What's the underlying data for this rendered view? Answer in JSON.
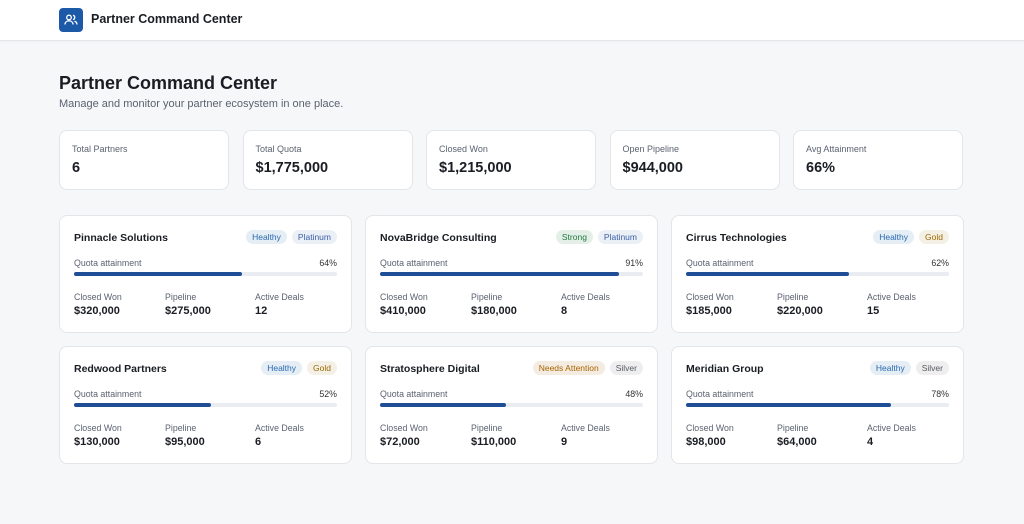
{
  "header": {
    "title": "Partner Command Center"
  },
  "page": {
    "title": "Partner Command Center",
    "subtitle": "Manage and monitor your partner ecosystem in one place."
  },
  "stats": [
    {
      "label": "Total Partners",
      "value": "6"
    },
    {
      "label": "Total Quota",
      "value": "$1,775,000"
    },
    {
      "label": "Closed Won",
      "value": "$1,215,000"
    },
    {
      "label": "Open Pipeline",
      "value": "$944,000"
    },
    {
      "label": "Avg Attainment",
      "value": "66%"
    }
  ],
  "card_labels": {
    "attainment": "Quota attainment",
    "closed_won": "Closed Won",
    "pipeline": "Pipeline",
    "active_deals": "Active Deals"
  },
  "bar_color": "#1f4e96",
  "partners": [
    {
      "name": "Pinnacle Solutions",
      "status": "Healthy",
      "status_color": "#2a6bb0",
      "tier": "Platinum",
      "tier_color": "#3b5fa8",
      "attainment": {
        "value": 64,
        "label": "64%"
      },
      "closed_won": "$320,000",
      "pipeline": "$275,000",
      "active_deals": "12"
    },
    {
      "name": "NovaBridge Consulting",
      "status": "Strong",
      "status_color": "#1f7a3e",
      "tier": "Platinum",
      "tier_color": "#3b5fa8",
      "attainment": {
        "value": 91,
        "label": "91%"
      },
      "closed_won": "$410,000",
      "pipeline": "$180,000",
      "active_deals": "8"
    },
    {
      "name": "Cirrus Technologies",
      "status": "Healthy",
      "status_color": "#2a6bb0",
      "tier": "Gold",
      "tier_color": "#9a6a00",
      "attainment": {
        "value": 62,
        "label": "62%"
      },
      "closed_won": "$185,000",
      "pipeline": "$220,000",
      "active_deals": "15"
    },
    {
      "name": "Redwood Partners",
      "status": "Healthy",
      "status_color": "#2a6bb0",
      "tier": "Gold",
      "tier_color": "#9a6a00",
      "attainment": {
        "value": 52,
        "label": "52%"
      },
      "closed_won": "$130,000",
      "pipeline": "$95,000",
      "active_deals": "6"
    },
    {
      "name": "Stratosphere Digital",
      "status": "Needs Attention",
      "status_color": "#a86400",
      "tier": "Silver",
      "tier_color": "#555a62",
      "attainment": {
        "value": 48,
        "label": "48%"
      },
      "closed_won": "$72,000",
      "pipeline": "$110,000",
      "active_deals": "9"
    },
    {
      "name": "Meridian Group",
      "status": "Healthy",
      "status_color": "#2a6bb0",
      "tier": "Silver",
      "tier_color": "#555a62",
      "attainment": {
        "value": 78,
        "label": "78%"
      },
      "closed_won": "$98,000",
      "pipeline": "$64,000",
      "active_deals": "4"
    }
  ]
}
